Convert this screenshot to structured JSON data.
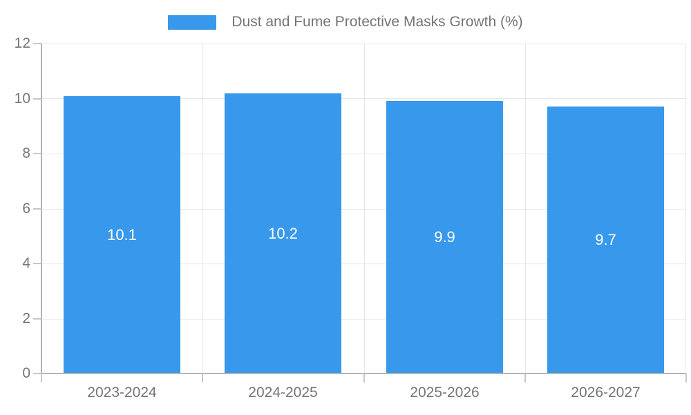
{
  "chart_data": {
    "type": "bar",
    "title": "Dust and Fume Protective Masks Growth (%)",
    "categories": [
      "2023-2024",
      "2024-2025",
      "2025-2026",
      "2026-2027"
    ],
    "values": [
      10.1,
      10.2,
      9.9,
      9.7
    ],
    "value_labels": [
      "10.1",
      "10.2",
      "9.9",
      "9.7"
    ],
    "xlabel": "",
    "ylabel": "",
    "ylim": [
      0,
      12
    ],
    "yticks": [
      0,
      2,
      4,
      6,
      8,
      10,
      12
    ],
    "grid": true,
    "legend_position": "top",
    "colors": {
      "bar": "#3898EC",
      "axis_text": "#757575",
      "bar_value_text": "#FFFFFF",
      "gridline": "#E6E6E6",
      "axis_line": "#B3B3B3",
      "tick_mark": "#C6C6C6",
      "background": "#FFFFFF"
    }
  }
}
